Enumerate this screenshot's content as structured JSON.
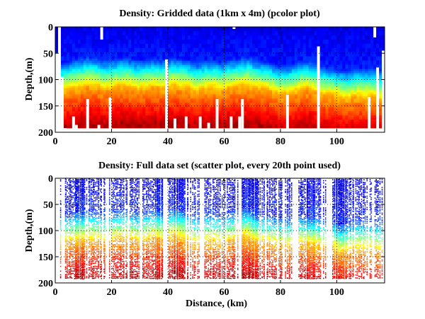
{
  "chart_data": [
    {
      "type": "heatmap",
      "subtype": "pcolor",
      "title": "Density: Gridded data (1km x 4m) (pcolor plot)",
      "xlabel": "",
      "ylabel": "Depth,(m)",
      "xlim": [
        0,
        117
      ],
      "ylim": [
        200,
        0
      ],
      "y_reversed": true,
      "xticks": [
        0,
        20,
        40,
        60,
        80,
        100
      ],
      "yticks": [
        0,
        50,
        100,
        150,
        200
      ],
      "grid": "dotted at ticks",
      "colormap": "jet",
      "cell_size": {
        "dx_km": 1,
        "dz_m": 4
      },
      "max_depth_m": 192,
      "pycnocline_depth_by_km": {
        "x": [
          0,
          3,
          6,
          9,
          11,
          14,
          17,
          20,
          23,
          26,
          29,
          32,
          35,
          38,
          41,
          44,
          47,
          50,
          53,
          56,
          59,
          62,
          65,
          68,
          71,
          74,
          77,
          80,
          83,
          86,
          89,
          92,
          95,
          98,
          101,
          104,
          107,
          110,
          113,
          116
        ],
        "depth_m": [
          95,
          92,
          86,
          84,
          80,
          82,
          88,
          86,
          82,
          83,
          88,
          86,
          84,
          86,
          82,
          84,
          86,
          92,
          88,
          86,
          90,
          86,
          84,
          80,
          86,
          88,
          92,
          98,
          96,
          92,
          86,
          92,
          98,
          100,
          104,
          106,
          102,
          104,
          102,
          108
        ]
      },
      "missing_data": [
        {
          "x_km": [
            0,
            1
          ],
          "depth_m": [
            50,
            200
          ]
        },
        {
          "x_km": [
            1,
            2
          ],
          "depth_m": [
            0,
            200
          ]
        },
        {
          "x_km": [
            2,
            3
          ],
          "depth_m": [
            95,
            200
          ]
        },
        {
          "x_km": [
            3,
            4
          ],
          "depth_m": [
            192,
            200
          ]
        },
        {
          "x_km": [
            6,
            7
          ],
          "depth_m": [
            170,
            200
          ]
        },
        {
          "x_km": [
            7,
            8
          ],
          "depth_m": [
            186,
            200
          ]
        },
        {
          "x_km": [
            11,
            12
          ],
          "depth_m": [
            137,
            200
          ]
        },
        {
          "x_km": [
            15,
            16
          ],
          "depth_m": [
            186,
            200
          ]
        },
        {
          "x_km": [
            16,
            17
          ],
          "depth_m": [
            0,
            24
          ]
        },
        {
          "x_km": [
            19,
            20
          ],
          "depth_m": [
            134,
            200
          ]
        },
        {
          "x_km": [
            39,
            40
          ],
          "depth_m": [
            62,
            200
          ]
        },
        {
          "x_km": [
            42,
            43
          ],
          "depth_m": [
            174,
            200
          ]
        },
        {
          "x_km": [
            46,
            47
          ],
          "depth_m": [
            170,
            200
          ]
        },
        {
          "x_km": [
            51,
            52
          ],
          "depth_m": [
            170,
            200
          ]
        },
        {
          "x_km": [
            54,
            55
          ],
          "depth_m": [
            182,
            200
          ]
        },
        {
          "x_km": [
            57,
            58
          ],
          "depth_m": [
            137,
            200
          ]
        },
        {
          "x_km": [
            62,
            63
          ],
          "depth_m": [
            170,
            200
          ]
        },
        {
          "x_km": [
            63,
            64
          ],
          "depth_m": [
            0,
            4
          ]
        },
        {
          "x_km": [
            65,
            66
          ],
          "depth_m": [
            170,
            200
          ]
        },
        {
          "x_km": [
            66,
            67
          ],
          "depth_m": [
            137,
            200
          ]
        },
        {
          "x_km": [
            82,
            83
          ],
          "depth_m": [
            129,
            200
          ]
        },
        {
          "x_km": [
            93,
            94
          ],
          "depth_m": [
            37,
            200
          ]
        },
        {
          "x_km": [
            111,
            112
          ],
          "depth_m": [
            133,
            200
          ]
        },
        {
          "x_km": [
            113,
            114
          ],
          "depth_m": [
            0,
            20
          ]
        },
        {
          "x_km": [
            114,
            115
          ],
          "depth_m": [
            77,
            200
          ]
        },
        {
          "x_km": [
            116,
            117
          ],
          "depth_m": [
            45,
            200
          ]
        }
      ]
    },
    {
      "type": "scatter",
      "title": "Density: Full data set (scatter plot, every 20th point used)",
      "xlabel": "Distance, (km)",
      "ylabel": "Depth,(m)",
      "xlim": [
        0,
        117
      ],
      "ylim": [
        200,
        0
      ],
      "y_reversed": true,
      "xticks": [
        0,
        20,
        40,
        60,
        80,
        100
      ],
      "yticks": [
        0,
        50,
        100,
        150,
        200
      ],
      "grid": "dotted at ticks",
      "colormap": "jet",
      "max_depth_m": 192,
      "dense_profile_bands_km": [
        [
          7,
          10
        ],
        [
          35,
          38
        ],
        [
          42,
          46
        ],
        [
          66,
          72
        ],
        [
          89,
          92
        ],
        [
          99,
          103
        ]
      ],
      "sparse_gaps_km": [
        [
          1,
          3
        ],
        [
          11,
          12
        ],
        [
          18,
          19
        ],
        [
          38,
          40
        ],
        [
          51,
          53
        ],
        [
          64,
          66
        ],
        [
          84,
          86
        ],
        [
          96,
          98
        ],
        [
          112,
          113
        ]
      ],
      "pycnocline_depth_by_km": {
        "x": [
          0,
          3,
          6,
          9,
          11,
          14,
          17,
          20,
          23,
          26,
          29,
          32,
          35,
          38,
          41,
          44,
          47,
          50,
          53,
          56,
          59,
          62,
          65,
          68,
          71,
          74,
          77,
          80,
          83,
          86,
          89,
          92,
          95,
          98,
          101,
          104,
          107,
          110,
          113,
          116
        ],
        "depth_m": [
          95,
          92,
          88,
          86,
          84,
          86,
          90,
          86,
          82,
          84,
          88,
          86,
          82,
          86,
          80,
          82,
          88,
          94,
          90,
          88,
          92,
          88,
          84,
          80,
          90,
          92,
          94,
          98,
          98,
          94,
          96,
          96,
          100,
          100,
          112,
          106,
          104,
          104,
          104,
          108
        ]
      }
    }
  ],
  "labels": {
    "top_title": "Density: Gridded data (1km x 4m) (pcolor plot)",
    "bottom_title": "Density: Full data set (scatter plot, every 20th point used)",
    "top_ylabel": "Depth,(m)",
    "bottom_ylabel": "Depth,(m)",
    "bottom_xlabel": "Distance, (km)"
  }
}
